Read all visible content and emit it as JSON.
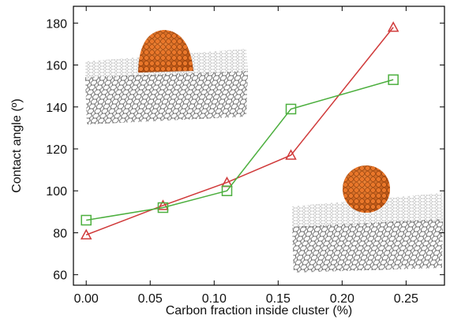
{
  "chart_data": {
    "type": "line",
    "x_label": "Carbon fraction inside cluster (%)",
    "y_label": "Contact angle (º)",
    "x": [
      0,
      0.06,
      0.11,
      0.16,
      0.24
    ],
    "series": [
      {
        "color": "#d03a3a",
        "marker": "triangle",
        "values": [
          79,
          93,
          104,
          117,
          178
        ]
      },
      {
        "color": "#4caf3e",
        "marker": "square",
        "values": [
          86,
          92,
          100,
          139,
          153
        ]
      }
    ],
    "xlim": [
      -0.01,
      0.28
    ],
    "ylim": [
      55,
      188
    ],
    "xticks": [
      {
        "value": 0,
        "label": "0.00"
      },
      {
        "value": 0.05,
        "label": "0.05"
      },
      {
        "value": 0.1,
        "label": "0.10"
      },
      {
        "value": 0.15,
        "label": "0.15"
      },
      {
        "value": 0.2,
        "label": "0.20"
      },
      {
        "value": 0.25,
        "label": "0.25"
      }
    ],
    "yticks": [
      60,
      80,
      100,
      120,
      140,
      160,
      180
    ]
  }
}
